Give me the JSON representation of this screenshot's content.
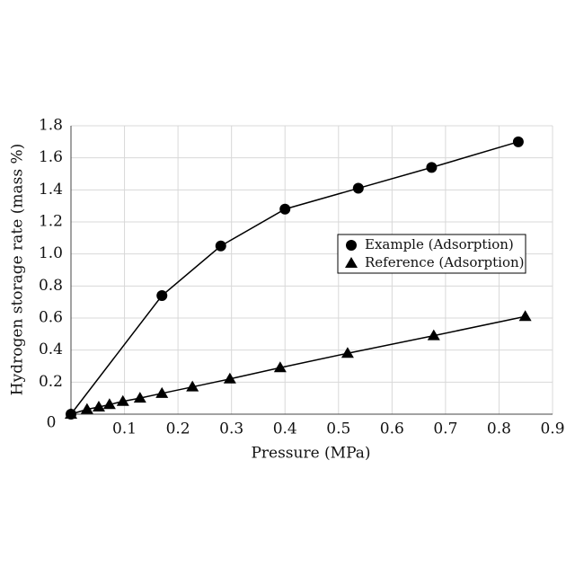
{
  "chart_data": {
    "type": "line",
    "x_label": "Pressure (MPa)",
    "y_label": "Hydrogen storage rate (mass %)",
    "xlim": [
      0,
      0.9
    ],
    "xticks": [
      0.1,
      0.2,
      0.3,
      0.4,
      0.5,
      0.6,
      0.7,
      0.8,
      0.9
    ],
    "ylim": [
      0,
      1.8
    ],
    "yticks": [
      0,
      0.2,
      0.4,
      0.6,
      {
        "value": 0.8,
        "label": "0.8"
      },
      {
        "value": 1.0,
        "label": "1.0"
      },
      1.2,
      1.4,
      1.6,
      1.8
    ],
    "grid": true,
    "legend": "right",
    "series": [
      {
        "name": "Example (Adsorption)",
        "color": "#000000",
        "marker": "circle",
        "x": [
          0,
          0.17,
          0.28,
          0.4,
          0.537,
          0.674,
          0.836
        ],
        "values": [
          0,
          0.74,
          1.05,
          1.28,
          1.41,
          1.54,
          1.7
        ]
      },
      {
        "name": "Reference (Adsorption)",
        "color": "#000000",
        "marker": "triangle",
        "x": [
          0,
          0.03,
          0.052,
          0.072,
          0.097,
          0.129,
          0.17,
          0.227,
          0.297,
          0.391,
          0.517,
          0.678,
          0.849
        ],
        "values": [
          0,
          0.03,
          0.045,
          0.06,
          0.08,
          0.1,
          0.13,
          0.17,
          0.22,
          0.29,
          0.38,
          0.49,
          0.61
        ]
      }
    ]
  }
}
